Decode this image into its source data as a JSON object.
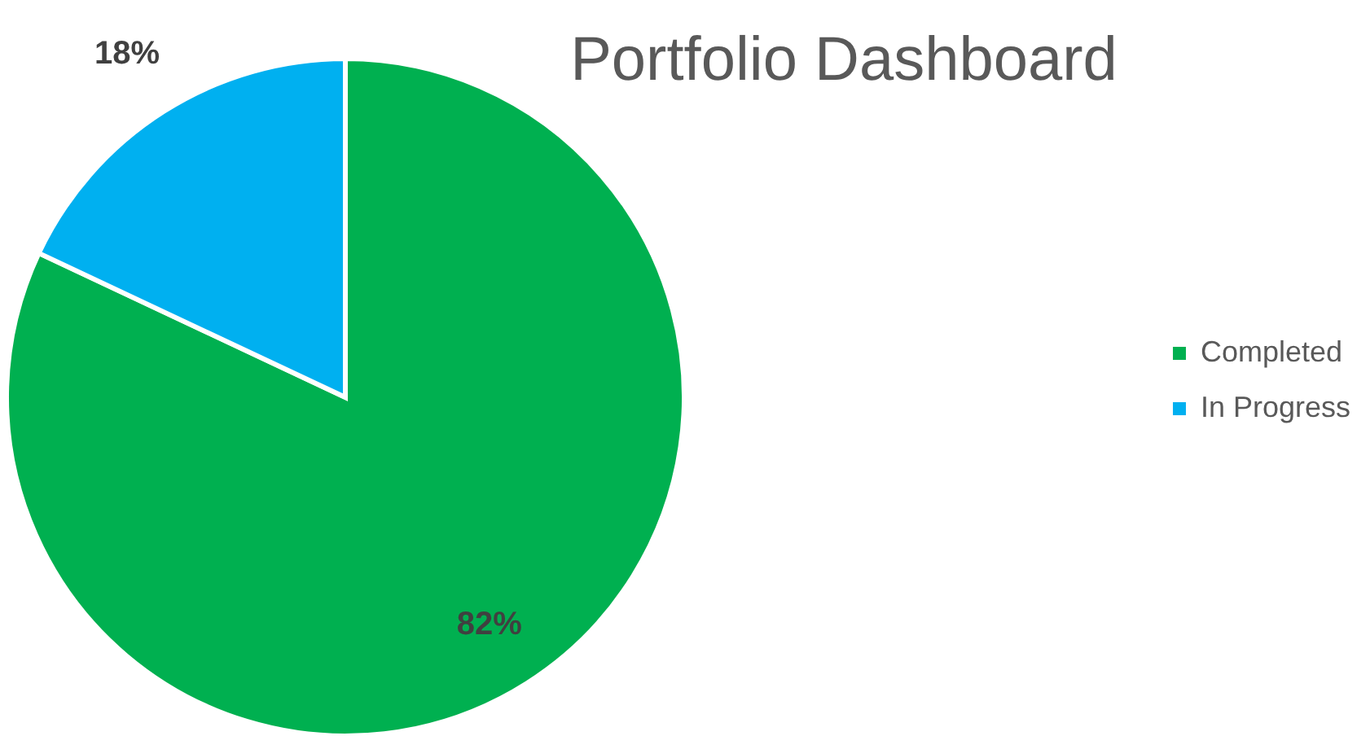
{
  "chart_data": {
    "type": "pie",
    "title": "Portfolio Dashboard",
    "categories": [
      "Completed",
      "In Progress"
    ],
    "values": [
      82,
      18
    ],
    "colors": [
      "#00b050",
      "#00b0f0"
    ],
    "value_labels": [
      "82%",
      "18%"
    ],
    "legend": "right"
  }
}
